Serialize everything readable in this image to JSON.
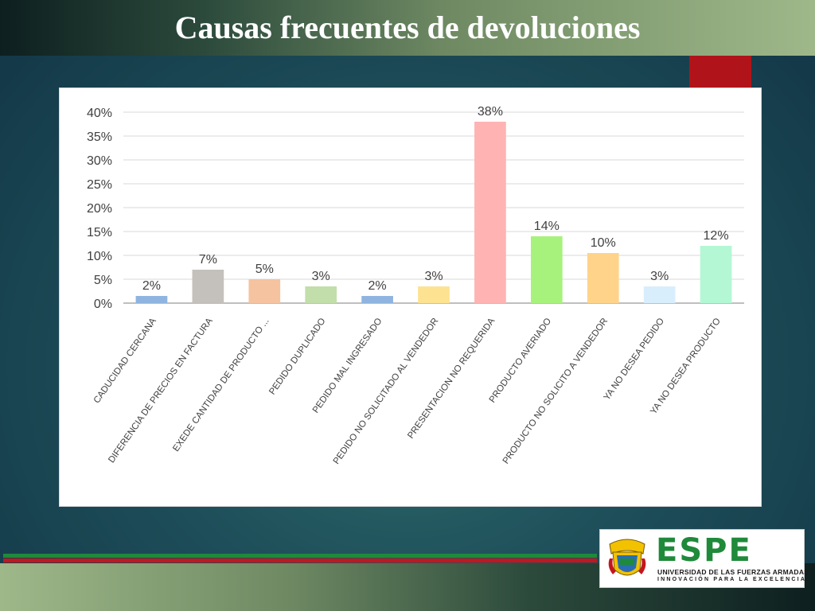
{
  "slide": {
    "title": "Causas frecuentes de devoluciones"
  },
  "logo": {
    "word": "ESPE",
    "line1": "UNIVERSIDAD DE LAS FUERZAS ARMADAS",
    "line2": "INNOVACIÓN PARA LA EXCELENCIA"
  },
  "chart_data": {
    "type": "bar",
    "title": "",
    "xlabel": "",
    "ylabel": "",
    "ylim": [
      0,
      40
    ],
    "yticks": [
      "0%",
      "5%",
      "10%",
      "15%",
      "20%",
      "25%",
      "30%",
      "35%",
      "40%"
    ],
    "grid": true,
    "categories": [
      "CADUCIDAD CERCANA",
      "DIFERENCIA DE PRECIOS EN FACTURA",
      "EXEDE CANTIDAD DE PRODUCTO ...",
      "PEDIDO DUPLICADO",
      "PEDIDO MAL INGRESADO",
      "PEDIDO NO SOLICITADO AL VENDEDOR",
      "PRESENTACION NO REQUERIDA",
      "PRODUCTO AVERIADO",
      "PRODUCTO NO SOLICITO A VENDEDOR",
      "YA NO DESEA PEDIDO",
      "YA NO DESEA PRODUCTO"
    ],
    "values": [
      1.5,
      7,
      5,
      3.5,
      1.5,
      3.5,
      38,
      14,
      10.5,
      3.5,
      12
    ],
    "data_labels": [
      "2%",
      "7%",
      "5%",
      "3%",
      "2%",
      "3%",
      "38%",
      "14%",
      "10%",
      "3%",
      "12%"
    ],
    "colors": [
      "#8fb4e0",
      "#c4c1bd",
      "#f6c3a0",
      "#c2deaa",
      "#8fb4e0",
      "#fde291",
      "#ffb3b3",
      "#a7f27c",
      "#ffd48a",
      "#d9eefc",
      "#b3f7d4"
    ]
  }
}
